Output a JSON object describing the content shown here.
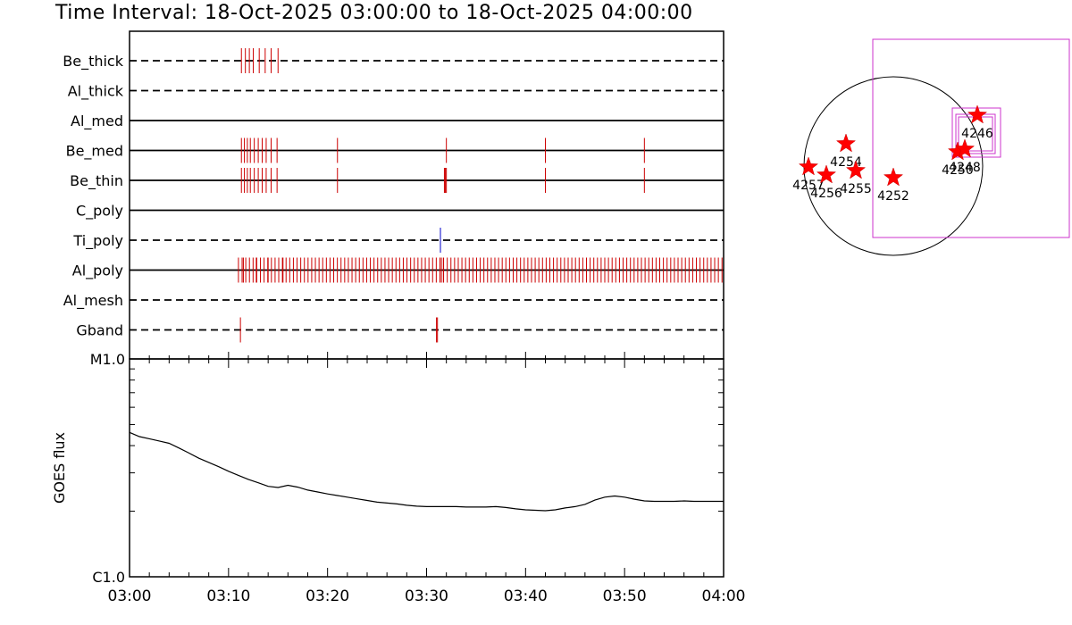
{
  "title": "Time Interval: 18-Oct-2025 03:00:00 to 18-Oct-2025 04:00:00",
  "chart_data": [
    {
      "type": "timeline",
      "x_unit": "minutes after 03:00",
      "xlim": [
        0,
        60
      ],
      "x_tick_labels": [
        "03:00",
        "03:10",
        "03:20",
        "03:30",
        "03:40",
        "03:50",
        "04:00"
      ],
      "x_tick_values": [
        0,
        10,
        20,
        30,
        40,
        50,
        60
      ],
      "filters": [
        {
          "label": "Be_thick",
          "style": "dashed",
          "events": [
            11.3,
            11.7,
            12.1,
            12.5,
            13.1,
            13.7,
            14.3,
            15.0
          ]
        },
        {
          "label": "Al_thick",
          "style": "dashed",
          "events": []
        },
        {
          "label": "Al_med",
          "style": "solid",
          "events": []
        },
        {
          "label": "Be_med",
          "style": "solid",
          "events": [
            11.3,
            11.6,
            11.9,
            12.2,
            12.6,
            13.0,
            13.4,
            13.8,
            14.3,
            14.9,
            21.0,
            32.0,
            42.0,
            52.0
          ]
        },
        {
          "label": "Be_thin",
          "style": "solid",
          "events": [
            11.3,
            11.6,
            11.9,
            12.2,
            12.6,
            13.0,
            13.4,
            13.8,
            14.3,
            14.9,
            21.0,
            31.8,
            31.9,
            32.0,
            42.0,
            52.0
          ]
        },
        {
          "label": "C_poly",
          "style": "solid",
          "events": []
        },
        {
          "label": "Ti_poly",
          "style": "dashed",
          "events": [
            31.4
          ],
          "color": "#0000cc"
        },
        {
          "label": "Al_poly",
          "style": "solid",
          "dense_range": [
            11.0,
            60.0
          ],
          "dense_step": 0.37,
          "events": [
            11.5,
            12.8,
            14.0,
            15.5,
            31.5,
            31.7
          ]
        },
        {
          "label": "Al_mesh",
          "style": "dashed",
          "events": []
        },
        {
          "label": "Gband",
          "style": "dashed",
          "events": [
            11.2,
            31.0,
            31.1
          ]
        }
      ]
    },
    {
      "type": "line",
      "ylabel": "GOES flux",
      "y_scale": "log",
      "y_tick_labels": [
        "C1.0",
        "M1.0"
      ],
      "y_tick_values": [
        1e-06,
        1e-05
      ],
      "ylim": [
        1e-06,
        1e-05
      ],
      "xlim": [
        0,
        60
      ],
      "x": [
        0,
        1,
        2,
        3,
        4,
        5,
        6,
        7,
        8,
        9,
        10,
        11,
        12,
        13,
        14,
        15,
        16,
        17,
        18,
        19,
        20,
        21,
        22,
        23,
        24,
        25,
        26,
        27,
        28,
        29,
        30,
        31,
        32,
        33,
        34,
        35,
        36,
        37,
        38,
        39,
        40,
        41,
        42,
        43,
        44,
        45,
        46,
        47,
        48,
        49,
        50,
        51,
        52,
        53,
        54,
        55,
        56,
        57,
        58,
        59,
        60
      ],
      "y": [
        4.6e-06,
        4.4e-06,
        4.3e-06,
        4.2e-06,
        4.1e-06,
        3.9e-06,
        3.7e-06,
        3.5e-06,
        3.35e-06,
        3.2e-06,
        3.05e-06,
        2.92e-06,
        2.8e-06,
        2.7e-06,
        2.6e-06,
        2.57e-06,
        2.63e-06,
        2.58e-06,
        2.5e-06,
        2.45e-06,
        2.4e-06,
        2.36e-06,
        2.32e-06,
        2.28e-06,
        2.24e-06,
        2.2e-06,
        2.18e-06,
        2.16e-06,
        2.13e-06,
        2.11e-06,
        2.1e-06,
        2.1e-06,
        2.1e-06,
        2.1e-06,
        2.09e-06,
        2.09e-06,
        2.09e-06,
        2.1e-06,
        2.08e-06,
        2.05e-06,
        2.03e-06,
        2.02e-06,
        2.01e-06,
        2.03e-06,
        2.07e-06,
        2.1e-06,
        2.15e-06,
        2.25e-06,
        2.32e-06,
        2.35e-06,
        2.32e-06,
        2.27e-06,
        2.23e-06,
        2.22e-06,
        2.22e-06,
        2.22e-06,
        2.23e-06,
        2.22e-06,
        2.22e-06,
        2.22e-06,
        2.22e-06
      ]
    },
    {
      "type": "scatter",
      "regions": [
        {
          "label": "4257",
          "x": -0.95,
          "y": -0.01
        },
        {
          "label": "4256",
          "x": -0.75,
          "y": -0.1
        },
        {
          "label": "4254",
          "x": -0.53,
          "y": 0.25
        },
        {
          "label": "4255",
          "x": -0.42,
          "y": -0.05
        },
        {
          "label": "4252",
          "x": 0.0,
          "y": -0.13
        },
        {
          "label": "4250",
          "x": 0.72,
          "y": 0.16
        },
        {
          "label": "4248",
          "x": 0.8,
          "y": 0.19
        },
        {
          "label": "4246",
          "x": 0.94,
          "y": 0.57
        }
      ]
    }
  ]
}
